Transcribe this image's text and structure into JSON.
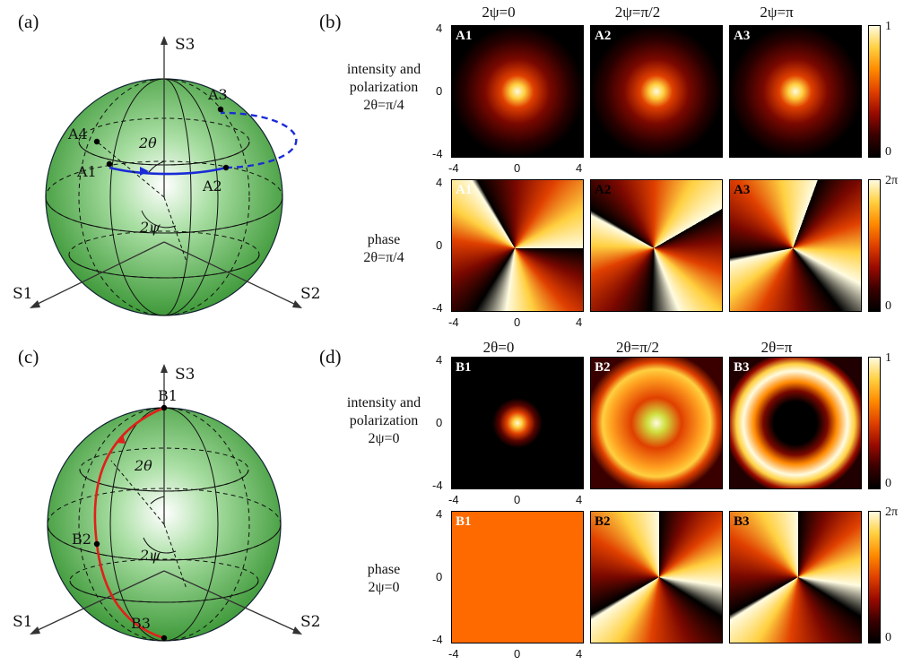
{
  "panels": {
    "a": {
      "letter": "(a)"
    },
    "b": {
      "letter": "(b)"
    },
    "c": {
      "letter": "(c)"
    },
    "d": {
      "letter": "(d)"
    }
  },
  "sphere_a": {
    "axes": {
      "s1": "S1",
      "s2": "S2",
      "s3": "S3"
    },
    "points": [
      "A1",
      "A2",
      "A3",
      "A4"
    ],
    "angle_theta": "2θ",
    "angle_psi": "2ψ",
    "path_color": "#1a2bd6"
  },
  "sphere_c": {
    "axes": {
      "s1": "S1",
      "s2": "S2",
      "s3": "S3"
    },
    "points": [
      "B1",
      "B2",
      "B3"
    ],
    "angle_theta": "2θ",
    "angle_psi": "2ψ",
    "path_color": "#e0201a"
  },
  "panel_b": {
    "col_titles": [
      "2ψ=0",
      "2ψ=π/2",
      "2ψ=π"
    ],
    "row1_label": [
      "intensity and",
      "polarization",
      "2θ=π/4"
    ],
    "row2_label": [
      "phase",
      "2θ=π/4"
    ],
    "sub_labels_row1": [
      "A1",
      "A2",
      "A3"
    ],
    "sub_labels_row2": [
      "A1",
      "A2",
      "A3"
    ],
    "y_ticks": [
      "4",
      "0",
      "-4"
    ],
    "x_ticks": [
      "-4",
      "0",
      "4"
    ],
    "cbar1": {
      "max": "1",
      "min": "0"
    },
    "cbar2": {
      "max": "2π",
      "min": "0"
    }
  },
  "panel_d": {
    "col_titles": [
      "2θ=0",
      "2θ=π/2",
      "2θ=π"
    ],
    "row1_label": [
      "intensity and",
      "polarization",
      "2ψ=0"
    ],
    "row2_label": [
      "phase",
      "2ψ=0"
    ],
    "sub_labels_row1": [
      "B1",
      "B2",
      "B3"
    ],
    "sub_labels_row2": [
      "B1",
      "B2",
      "B3"
    ],
    "y_ticks": [
      "4",
      "0",
      "-4"
    ],
    "x_ticks": [
      "-4",
      "0",
      "4"
    ],
    "cbar1": {
      "max": "1",
      "min": "0"
    },
    "cbar2": {
      "max": "2π",
      "min": "0"
    }
  },
  "colors": {
    "sphere_green": "#3fa63a",
    "colormap_stops": [
      "#000000",
      "#3a0000",
      "#9a0a00",
      "#e04000",
      "#ff8a00",
      "#ffd040",
      "#fffbe0"
    ]
  }
}
